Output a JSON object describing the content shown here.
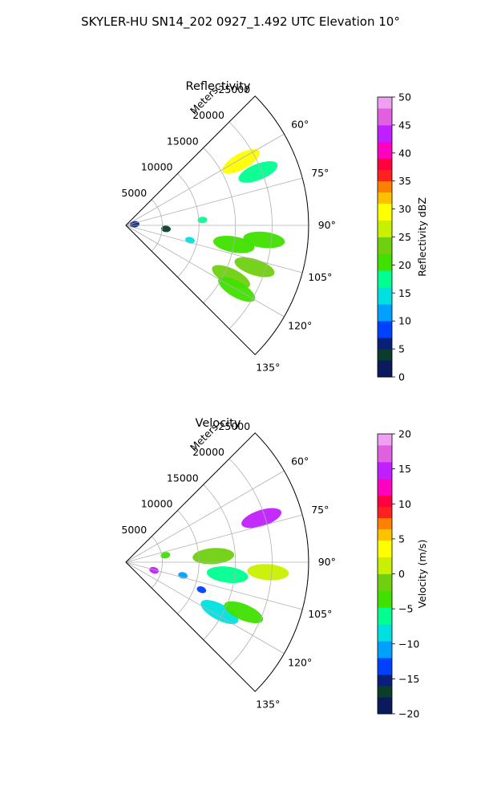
{
  "figure": {
    "suptitle": "SKYLER-HU  SN14_202  0927_1.492 UTC Elevation 10°"
  },
  "chart_data": [
    {
      "type": "heatmap",
      "projection": "polar-sector",
      "title": "Reflectivity",
      "radial_axis_label": "Meters",
      "range_ticks": [
        5000,
        10000,
        15000,
        20000,
        25000
      ],
      "range_tick_labels": [
        "5000",
        "10000",
        "15000",
        "20000",
        "25000"
      ],
      "rmax": 25000,
      "azimuth_range_deg": [
        45,
        135
      ],
      "azimuth_ticks": [
        60,
        75,
        90,
        105,
        120,
        135
      ],
      "azimuth_tick_labels": [
        "60°",
        "75°",
        "90°",
        "105°",
        "120°",
        "135°"
      ],
      "grid": true,
      "colorbar": {
        "label": "Reflectivity dBZ",
        "vmin": 0,
        "vmax": 50,
        "ticks": [
          0,
          5,
          10,
          15,
          20,
          25,
          30,
          35,
          40,
          45,
          50
        ],
        "tick_labels": [
          "0",
          "5",
          "10",
          "15",
          "20",
          "25",
          "30",
          "35",
          "40",
          "45",
          "50"
        ],
        "stops": [
          [
            0.0,
            "#0a1a5c"
          ],
          [
            0.06,
            "#0b3d2b"
          ],
          [
            0.1,
            "#08207a"
          ],
          [
            0.14,
            "#0040ff"
          ],
          [
            0.2,
            "#00a0ff"
          ],
          [
            0.26,
            "#00e0e0"
          ],
          [
            0.32,
            "#00ff90"
          ],
          [
            0.38,
            "#40e000"
          ],
          [
            0.44,
            "#70d010"
          ],
          [
            0.5,
            "#c8f000"
          ],
          [
            0.56,
            "#ffff00"
          ],
          [
            0.62,
            "#ffc000"
          ],
          [
            0.66,
            "#ff8000"
          ],
          [
            0.7,
            "#ff2020"
          ],
          [
            0.74,
            "#ff0040"
          ],
          [
            0.78,
            "#ff00c0"
          ],
          [
            0.84,
            "#c020ff"
          ],
          [
            0.9,
            "#e060e0"
          ],
          [
            0.95,
            "#f0a0f0"
          ],
          [
            1.0,
            "#ffe8ff"
          ]
        ]
      },
      "echoes": [
        {
          "az_deg": 83,
          "range_m": 1200,
          "value": 7
        },
        {
          "az_deg": 86,
          "range_m": 10500,
          "value": 18
        },
        {
          "az_deg": 95,
          "range_m": 5500,
          "value": 4
        },
        {
          "az_deg": 103,
          "range_m": 9000,
          "value": 14
        },
        {
          "az_deg": 100,
          "range_m": 15000,
          "value": 22
        },
        {
          "az_deg": 96,
          "range_m": 19000,
          "value": 21
        },
        {
          "az_deg": 108,
          "range_m": 18500,
          "value": 24
        },
        {
          "az_deg": 116,
          "range_m": 16000,
          "value": 23
        },
        {
          "az_deg": 120,
          "range_m": 17500,
          "value": 22
        },
        {
          "az_deg": 61,
          "range_m": 18000,
          "value": 30
        },
        {
          "az_deg": 68,
          "range_m": 19500,
          "value": 18
        }
      ]
    },
    {
      "type": "heatmap",
      "projection": "polar-sector",
      "title": "Velocity",
      "radial_axis_label": "Meters",
      "range_ticks": [
        5000,
        10000,
        15000,
        20000,
        25000
      ],
      "range_tick_labels": [
        "5000",
        "10000",
        "15000",
        "20000",
        "25000"
      ],
      "rmax": 25000,
      "azimuth_range_deg": [
        45,
        135
      ],
      "azimuth_ticks": [
        60,
        75,
        90,
        105,
        120,
        135
      ],
      "azimuth_tick_labels": [
        "60°",
        "75°",
        "90°",
        "105°",
        "120°",
        "135°"
      ],
      "grid": true,
      "colorbar": {
        "label": "Velocity (m/s)",
        "vmin": -20,
        "vmax": 20,
        "ticks": [
          -20,
          -15,
          -10,
          -5,
          0,
          5,
          10,
          15,
          20
        ],
        "tick_labels": [
          "−20",
          "−15",
          "−10",
          "−5",
          "0",
          "5",
          "10",
          "15",
          "20"
        ],
        "stops": [
          [
            0.0,
            "#0a1a5c"
          ],
          [
            0.06,
            "#0b3d2b"
          ],
          [
            0.1,
            "#08207a"
          ],
          [
            0.14,
            "#0040ff"
          ],
          [
            0.2,
            "#00a0ff"
          ],
          [
            0.26,
            "#00e0e0"
          ],
          [
            0.32,
            "#00ff90"
          ],
          [
            0.38,
            "#40e000"
          ],
          [
            0.44,
            "#70d010"
          ],
          [
            0.5,
            "#c8f000"
          ],
          [
            0.56,
            "#ffff00"
          ],
          [
            0.62,
            "#ffc000"
          ],
          [
            0.66,
            "#ff8000"
          ],
          [
            0.7,
            "#ff2020"
          ],
          [
            0.74,
            "#ff0040"
          ],
          [
            0.78,
            "#ff00c0"
          ],
          [
            0.84,
            "#c020ff"
          ],
          [
            0.9,
            "#e060e0"
          ],
          [
            0.95,
            "#f0a0f0"
          ],
          [
            1.0,
            "#ffe8ff"
          ]
        ]
      },
      "echoes": [
        {
          "az_deg": 86,
          "range_m": 12000,
          "value": 0
        },
        {
          "az_deg": 94,
          "range_m": 19500,
          "value": 1
        },
        {
          "az_deg": 97,
          "range_m": 14000,
          "value": -5
        },
        {
          "az_deg": 103,
          "range_m": 8000,
          "value": -10
        },
        {
          "az_deg": 110,
          "range_m": 11000,
          "value": -12
        },
        {
          "az_deg": 118,
          "range_m": 14500,
          "value": -8
        },
        {
          "az_deg": 113,
          "range_m": 17500,
          "value": -4
        },
        {
          "az_deg": 106,
          "range_m": 4000,
          "value": 14
        },
        {
          "az_deg": 80,
          "range_m": 5500,
          "value": -3
        },
        {
          "az_deg": 72,
          "range_m": 19500,
          "value": 16
        }
      ]
    }
  ]
}
